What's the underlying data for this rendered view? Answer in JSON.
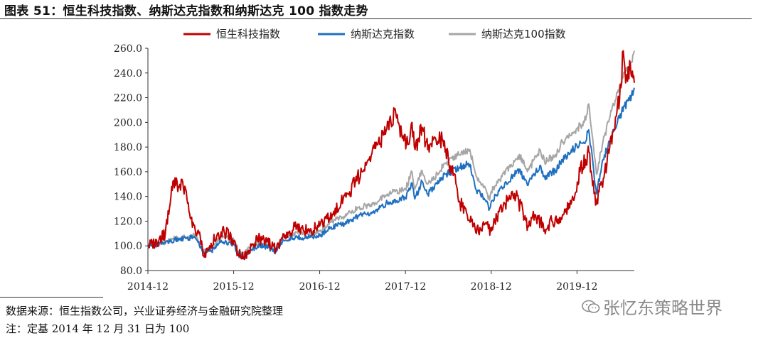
{
  "title": "图表 51：恒生科技指数、纳斯达克指数和纳斯达克 100 指数走势",
  "source": "数据来源：恒生指数公司，兴业证券经济与金融研究院整理",
  "footnote": "注：定基 2014 年 12 月 31 日为 100",
  "watermark": "张忆东策略世界",
  "watermark_icon": "wechat-icon",
  "chart_data": {
    "type": "line",
    "xlabel": "",
    "ylabel": "",
    "ylim": [
      80,
      260
    ],
    "yticks": [
      80,
      100,
      120,
      140,
      160,
      180,
      200,
      220,
      240,
      260
    ],
    "ytick_labels": [
      "80.0",
      "100.0",
      "120.0",
      "140.0",
      "160.0",
      "180.0",
      "200.0",
      "220.0",
      "240.0",
      "260.0"
    ],
    "xlim": [
      "2014-12-31",
      "2020-08-31"
    ],
    "xtick_labels": [
      "2014-12",
      "2015-12",
      "2016-12",
      "2017-12",
      "2018-12",
      "2019-12"
    ],
    "xticks": [
      "2014-12-31",
      "2015-12-31",
      "2016-12-31",
      "2017-12-31",
      "2018-12-31",
      "2019-12-31"
    ],
    "grid": false,
    "legend": "top",
    "series": [
      {
        "name": "恒生科技指数",
        "color": "#c00000",
        "points": [
          [
            "2014-12-31",
            100
          ],
          [
            "2015-02-15",
            104
          ],
          [
            "2015-03-15",
            110
          ],
          [
            "2015-04-08",
            140
          ],
          [
            "2015-04-25",
            155
          ],
          [
            "2015-05-10",
            148
          ],
          [
            "2015-05-28",
            152
          ],
          [
            "2015-06-15",
            138
          ],
          [
            "2015-07-08",
            115
          ],
          [
            "2015-08-05",
            110
          ],
          [
            "2015-08-25",
            92
          ],
          [
            "2015-09-20",
            100
          ],
          [
            "2015-10-20",
            108
          ],
          [
            "2015-11-20",
            112
          ],
          [
            "2015-12-31",
            104
          ],
          [
            "2016-01-20",
            93
          ],
          [
            "2016-02-12",
            91
          ],
          [
            "2016-03-15",
            100
          ],
          [
            "2016-04-20",
            106
          ],
          [
            "2016-05-20",
            103
          ],
          [
            "2016-06-27",
            98
          ],
          [
            "2016-07-25",
            106
          ],
          [
            "2016-08-25",
            112
          ],
          [
            "2016-09-25",
            116
          ],
          [
            "2016-10-25",
            112
          ],
          [
            "2016-11-20",
            113
          ],
          [
            "2016-12-31",
            116
          ],
          [
            "2017-02-01",
            122
          ],
          [
            "2017-03-01",
            128
          ],
          [
            "2017-04-01",
            135
          ],
          [
            "2017-05-01",
            142
          ],
          [
            "2017-06-01",
            152
          ],
          [
            "2017-07-01",
            160
          ],
          [
            "2017-08-01",
            172
          ],
          [
            "2017-09-01",
            182
          ],
          [
            "2017-10-01",
            190
          ],
          [
            "2017-11-20",
            207
          ],
          [
            "2017-12-15",
            190
          ],
          [
            "2018-01-10",
            182
          ],
          [
            "2018-01-28",
            200
          ],
          [
            "2018-02-10",
            178
          ],
          [
            "2018-03-12",
            196
          ],
          [
            "2018-04-05",
            178
          ],
          [
            "2018-05-10",
            186
          ],
          [
            "2018-06-15",
            185
          ],
          [
            "2018-07-05",
            165
          ],
          [
            "2018-07-25",
            158
          ],
          [
            "2018-08-20",
            135
          ],
          [
            "2018-09-20",
            125
          ],
          [
            "2018-10-29",
            110
          ],
          [
            "2018-11-25",
            118
          ],
          [
            "2018-12-31",
            112
          ],
          [
            "2019-01-15",
            120
          ],
          [
            "2019-02-20",
            132
          ],
          [
            "2019-03-15",
            138
          ],
          [
            "2019-04-15",
            140
          ],
          [
            "2019-05-15",
            128
          ],
          [
            "2019-06-05",
            116
          ],
          [
            "2019-06-25",
            124
          ],
          [
            "2019-07-20",
            122
          ],
          [
            "2019-08-15",
            113
          ],
          [
            "2019-09-15",
            120
          ],
          [
            "2019-10-15",
            118
          ],
          [
            "2019-11-15",
            130
          ],
          [
            "2019-12-15",
            138
          ],
          [
            "2020-01-13",
            160
          ],
          [
            "2020-02-05",
            170
          ],
          [
            "2020-02-20",
            176
          ],
          [
            "2020-03-19",
            133
          ],
          [
            "2020-04-15",
            150
          ],
          [
            "2020-05-15",
            175
          ],
          [
            "2020-06-15",
            205
          ],
          [
            "2020-07-05",
            228
          ],
          [
            "2020-07-15",
            258
          ],
          [
            "2020-07-25",
            232
          ],
          [
            "2020-08-05",
            245
          ],
          [
            "2020-08-20",
            237
          ],
          [
            "2020-08-31",
            232
          ]
        ]
      },
      {
        "name": "纳斯达克指数",
        "color": "#1f6fc0",
        "points": [
          [
            "2014-12-31",
            100
          ],
          [
            "2015-02-15",
            101
          ],
          [
            "2015-03-15",
            102
          ],
          [
            "2015-04-25",
            105
          ],
          [
            "2015-06-15",
            106
          ],
          [
            "2015-07-20",
            107
          ],
          [
            "2015-08-25",
            94
          ],
          [
            "2015-09-28",
            96
          ],
          [
            "2015-10-30",
            102
          ],
          [
            "2015-11-30",
            103
          ],
          [
            "2015-12-31",
            101
          ],
          [
            "2016-01-20",
            93
          ],
          [
            "2016-02-11",
            90
          ],
          [
            "2016-03-15",
            97
          ],
          [
            "2016-04-20",
            100
          ],
          [
            "2016-05-20",
            99
          ],
          [
            "2016-06-27",
            95
          ],
          [
            "2016-07-25",
            103
          ],
          [
            "2016-08-25",
            106
          ],
          [
            "2016-09-25",
            107
          ],
          [
            "2016-10-25",
            106
          ],
          [
            "2016-11-20",
            107
          ],
          [
            "2016-12-31",
            108
          ],
          [
            "2017-02-15",
            115
          ],
          [
            "2017-04-15",
            118
          ],
          [
            "2017-06-15",
            124
          ],
          [
            "2017-08-15",
            127
          ],
          [
            "2017-10-15",
            135
          ],
          [
            "2017-12-31",
            139
          ],
          [
            "2018-01-28",
            151
          ],
          [
            "2018-02-09",
            138
          ],
          [
            "2018-03-12",
            152
          ],
          [
            "2018-04-05",
            142
          ],
          [
            "2018-05-15",
            150
          ],
          [
            "2018-06-20",
            158
          ],
          [
            "2018-08-30",
            165
          ],
          [
            "2018-10-01",
            166
          ],
          [
            "2018-10-29",
            145
          ],
          [
            "2018-11-25",
            140
          ],
          [
            "2018-12-24",
            130
          ],
          [
            "2018-12-31",
            136
          ],
          [
            "2019-02-15",
            147
          ],
          [
            "2019-04-30",
            162
          ],
          [
            "2019-06-03",
            149
          ],
          [
            "2019-07-26",
            165
          ],
          [
            "2019-08-15",
            156
          ],
          [
            "2019-09-30",
            161
          ],
          [
            "2019-10-30",
            170
          ],
          [
            "2019-12-31",
            181
          ],
          [
            "2020-01-31",
            183
          ],
          [
            "2020-02-19",
            194
          ],
          [
            "2020-03-23",
            142
          ],
          [
            "2020-04-20",
            170
          ],
          [
            "2020-05-20",
            185
          ],
          [
            "2020-06-20",
            200
          ],
          [
            "2020-07-20",
            213
          ],
          [
            "2020-08-10",
            218
          ],
          [
            "2020-08-31",
            228
          ]
        ]
      },
      {
        "name": "纳斯达克100指数",
        "color": "#a6a6a6",
        "points": [
          [
            "2014-12-31",
            100
          ],
          [
            "2015-02-15",
            102
          ],
          [
            "2015-03-15",
            103
          ],
          [
            "2015-04-25",
            106
          ],
          [
            "2015-06-15",
            107
          ],
          [
            "2015-07-20",
            109
          ],
          [
            "2015-08-25",
            96
          ],
          [
            "2015-09-28",
            98
          ],
          [
            "2015-10-30",
            106
          ],
          [
            "2015-11-30",
            107
          ],
          [
            "2015-12-31",
            105
          ],
          [
            "2016-01-20",
            96
          ],
          [
            "2016-02-11",
            93
          ],
          [
            "2016-03-15",
            100
          ],
          [
            "2016-04-20",
            102
          ],
          [
            "2016-05-20",
            101
          ],
          [
            "2016-06-27",
            97
          ],
          [
            "2016-07-25",
            106
          ],
          [
            "2016-08-25",
            109
          ],
          [
            "2016-09-25",
            111
          ],
          [
            "2016-10-25",
            110
          ],
          [
            "2016-11-20",
            110
          ],
          [
            "2016-12-31",
            112
          ],
          [
            "2017-02-15",
            119
          ],
          [
            "2017-04-15",
            124
          ],
          [
            "2017-06-15",
            131
          ],
          [
            "2017-08-15",
            134
          ],
          [
            "2017-10-15",
            142
          ],
          [
            "2017-12-31",
            146
          ],
          [
            "2018-01-28",
            160
          ],
          [
            "2018-02-09",
            146
          ],
          [
            "2018-03-12",
            161
          ],
          [
            "2018-04-05",
            150
          ],
          [
            "2018-05-15",
            158
          ],
          [
            "2018-06-20",
            167
          ],
          [
            "2018-08-30",
            176
          ],
          [
            "2018-10-01",
            178
          ],
          [
            "2018-10-29",
            156
          ],
          [
            "2018-11-25",
            150
          ],
          [
            "2018-12-24",
            137
          ],
          [
            "2018-12-31",
            144
          ],
          [
            "2019-02-15",
            156
          ],
          [
            "2019-04-30",
            174
          ],
          [
            "2019-06-03",
            160
          ],
          [
            "2019-07-26",
            178
          ],
          [
            "2019-08-15",
            168
          ],
          [
            "2019-09-30",
            174
          ],
          [
            "2019-10-30",
            184
          ],
          [
            "2019-12-31",
            195
          ],
          [
            "2020-01-31",
            200
          ],
          [
            "2020-02-19",
            215
          ],
          [
            "2020-03-23",
            158
          ],
          [
            "2020-04-20",
            185
          ],
          [
            "2020-05-20",
            205
          ],
          [
            "2020-06-20",
            224
          ],
          [
            "2020-07-20",
            240
          ],
          [
            "2020-08-10",
            245
          ],
          [
            "2020-08-31",
            258
          ]
        ]
      }
    ]
  }
}
